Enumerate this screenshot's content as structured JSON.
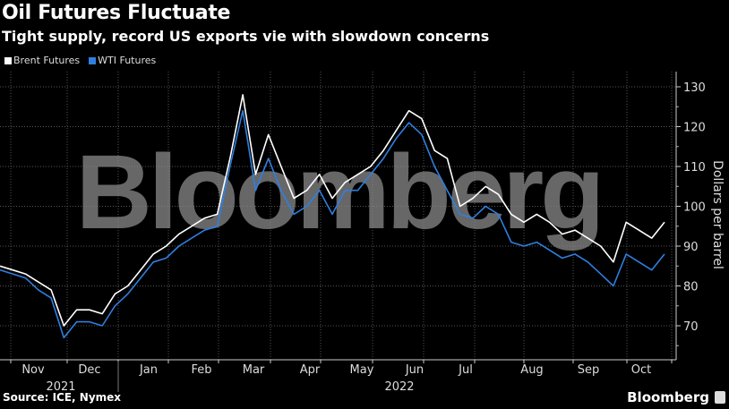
{
  "header": {
    "title": "Oil Futures Fluctuate",
    "subtitle": "Tight supply, record US exports vie with slowdown concerns"
  },
  "legend": [
    {
      "label": "Brent Futures",
      "color": "#ffffff"
    },
    {
      "label": "WTI Futures",
      "color": "#2f7fe0"
    }
  ],
  "footer": {
    "source": "Source: ICE, Nymex",
    "brand": "Bloomberg"
  },
  "watermark": "Bloomberg",
  "chart_data": {
    "type": "line",
    "title": "Oil Futures Fluctuate",
    "subtitle": "Tight supply, record US exports vie with slowdown concerns",
    "xlabel": "",
    "ylabel": "Dollars per barrel",
    "ylim": [
      63,
      134
    ],
    "yticks": [
      70,
      80,
      90,
      100,
      110,
      120,
      130
    ],
    "xticks": [
      "Nov",
      "Dec",
      "Jan",
      "Feb",
      "Mar",
      "Apr",
      "May",
      "Jun",
      "Jul",
      "Aug",
      "Sep",
      "Oct"
    ],
    "year_labels": [
      "2021",
      "2022"
    ],
    "grid": true,
    "legend_position": "top-left",
    "x": [
      "2021-10-25",
      "2021-11-01",
      "2021-11-08",
      "2021-11-15",
      "2021-11-22",
      "2021-11-29",
      "2021-12-06",
      "2021-12-13",
      "2021-12-20",
      "2021-12-27",
      "2022-01-03",
      "2022-01-10",
      "2022-01-17",
      "2022-01-24",
      "2022-01-31",
      "2022-02-07",
      "2022-02-14",
      "2022-02-21",
      "2022-02-28",
      "2022-03-07",
      "2022-03-14",
      "2022-03-21",
      "2022-03-28",
      "2022-04-04",
      "2022-04-11",
      "2022-04-18",
      "2022-04-25",
      "2022-05-02",
      "2022-05-09",
      "2022-05-16",
      "2022-05-23",
      "2022-05-30",
      "2022-06-06",
      "2022-06-13",
      "2022-06-20",
      "2022-06-27",
      "2022-07-04",
      "2022-07-11",
      "2022-07-18",
      "2022-07-25",
      "2022-08-01",
      "2022-08-08",
      "2022-08-15",
      "2022-08-22",
      "2022-08-29",
      "2022-09-05",
      "2022-09-12",
      "2022-09-19",
      "2022-09-26",
      "2022-10-03",
      "2022-10-10",
      "2022-10-17",
      "2022-10-21"
    ],
    "series": [
      {
        "name": "Brent Futures",
        "color": "#ffffff",
        "values": [
          85,
          84,
          83,
          81,
          79,
          70,
          74,
          74,
          73,
          78,
          80,
          84,
          88,
          90,
          93,
          95,
          97,
          98,
          112,
          128,
          108,
          118,
          110,
          102,
          104,
          108,
          102,
          106,
          108,
          110,
          114,
          119,
          124,
          122,
          114,
          112,
          100,
          102,
          105,
          103,
          98,
          96,
          98,
          96,
          93,
          94,
          92,
          90,
          86,
          96,
          94,
          92,
          96
        ]
      },
      {
        "name": "WTI Futures",
        "color": "#2f7fe0",
        "values": [
          84,
          83,
          82,
          79,
          77,
          67,
          71,
          71,
          70,
          75,
          78,
          82,
          86,
          87,
          90,
          92,
          94,
          95,
          110,
          124,
          104,
          112,
          104,
          98,
          100,
          104,
          98,
          104,
          104,
          108,
          112,
          117,
          121,
          118,
          110,
          104,
          98,
          97,
          100,
          98,
          91,
          90,
          91,
          89,
          87,
          88,
          86,
          83,
          80,
          88,
          86,
          84,
          88
        ]
      }
    ]
  }
}
